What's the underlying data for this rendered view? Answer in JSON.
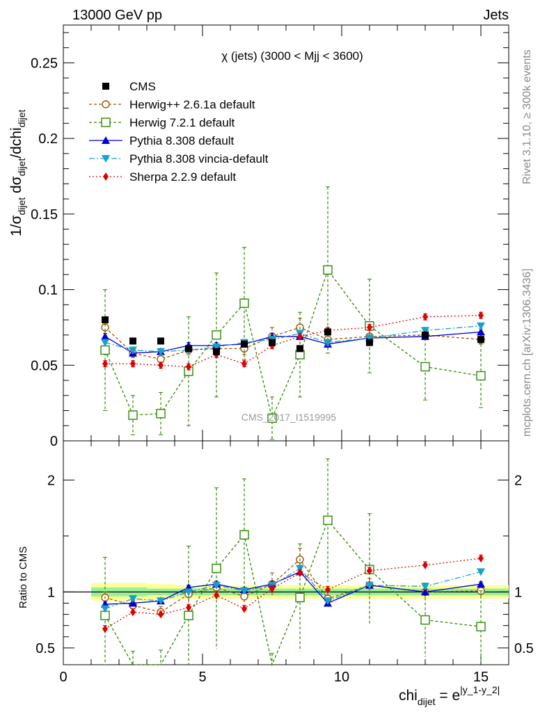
{
  "chart_data": {
    "type": "line",
    "header_left": "13000 GeV pp",
    "header_right": "Jets",
    "title": "χ (jets) (3000 < Mjj < 3600)",
    "watermark": "CMS_2017_I1519995",
    "side_label_top": "Rivet 3.1.10, ≥ 300k events",
    "side_label_bottom": "mcplots.cern.ch [arXiv:1306.3436]",
    "ylabel_top": "1/σ_dijet dσ_dijet/dchi_dijet",
    "ylabel_ratio": "Ratio to CMS",
    "xlabel": "chi_dijet = e^|y_1-y_2|",
    "xlim": [
      0,
      16
    ],
    "ylim_top": [
      0,
      0.275
    ],
    "ylim_ratio": [
      0.35,
      2.35
    ],
    "xticks": [
      0,
      5,
      10,
      15
    ],
    "yticks_top": [
      0,
      0.05,
      0.1,
      0.15,
      0.2,
      0.25
    ],
    "yticks_ratio": [
      0.5,
      1,
      2
    ],
    "x_bins": [
      1.5,
      2.5,
      3.5,
      4.5,
      5.5,
      6.5,
      7.5,
      8.5,
      9.5,
      11.0,
      13.0,
      15.0
    ],
    "bin_edges": [
      1,
      2,
      3,
      4,
      5,
      6,
      7,
      8,
      9,
      10,
      12,
      14,
      16
    ],
    "data": {
      "name": "CMS",
      "values": [
        0.08,
        0.066,
        0.066,
        0.061,
        0.059,
        0.064,
        0.065,
        0.061,
        0.072,
        0.065,
        0.07,
        0.067
      ],
      "band_inner": [
        0.04,
        0.04,
        0.03,
        0.03,
        0.03,
        0.03,
        0.03,
        0.03,
        0.03,
        0.03,
        0.03,
        0.03
      ],
      "band_outer": [
        0.08,
        0.08,
        0.07,
        0.06,
        0.06,
        0.06,
        0.06,
        0.06,
        0.06,
        0.06,
        0.06,
        0.06
      ]
    },
    "series": [
      {
        "name": "Herwig++ 2.6.1a default",
        "color": "#a05000",
        "dash": "4,3",
        "marker": "circle-open",
        "values": [
          0.075,
          0.058,
          0.054,
          0.06,
          0.061,
          0.061,
          0.069,
          0.075,
          0.067,
          0.069,
          0.07,
          0.067
        ],
        "errors": [
          0.004,
          0.003,
          0.003,
          0.003,
          0.003,
          0.004,
          0.006,
          0.006,
          0.004,
          0.004,
          0.003,
          0.003
        ]
      },
      {
        "name": "Herwig 7.2.1 default",
        "color": "#2a8a00",
        "dash": "4,3",
        "marker": "square-open",
        "values": [
          0.06,
          0.017,
          0.018,
          0.046,
          0.07,
          0.091,
          0.015,
          0.057,
          0.113,
          0.076,
          0.049,
          0.043
        ],
        "errors": [
          0.04,
          0.013,
          0.014,
          0.036,
          0.041,
          0.037,
          0.014,
          0.028,
          0.055,
          0.031,
          0.022,
          0.021
        ]
      },
      {
        "name": "Pythia 8.308 default",
        "color": "#0000d0",
        "dash": "",
        "marker": "triangle-up",
        "values": [
          0.069,
          0.058,
          0.059,
          0.063,
          0.063,
          0.064,
          0.069,
          0.069,
          0.064,
          0.068,
          0.069,
          0.072
        ],
        "errors": [
          0.002,
          0.002,
          0.002,
          0.002,
          0.002,
          0.002,
          0.002,
          0.002,
          0.002,
          0.002,
          0.002,
          0.002
        ]
      },
      {
        "name": "Pythia 8.308 vincia-default",
        "color": "#1aa0c8",
        "dash": "8,3,2,3",
        "marker": "triangle-down",
        "values": [
          0.065,
          0.06,
          0.059,
          0.06,
          0.062,
          0.065,
          0.067,
          0.071,
          0.065,
          0.068,
          0.073,
          0.076
        ],
        "errors": [
          0.002,
          0.002,
          0.002,
          0.002,
          0.002,
          0.002,
          0.002,
          0.002,
          0.002,
          0.002,
          0.002,
          0.002
        ]
      },
      {
        "name": "Sherpa 2.2.9 default",
        "color": "#e00000",
        "dash": "2,3",
        "marker": "diamond",
        "values": [
          0.051,
          0.051,
          0.05,
          0.049,
          0.057,
          0.051,
          0.063,
          0.069,
          0.073,
          0.075,
          0.082,
          0.083
        ],
        "errors": [
          0.002,
          0.002,
          0.002,
          0.002,
          0.002,
          0.002,
          0.002,
          0.002,
          0.002,
          0.002,
          0.002,
          0.002
        ]
      }
    ],
    "ratios": {
      "Herwig++ 2.6.1a default": [
        0.95,
        0.88,
        0.82,
        0.98,
        1.04,
        0.96,
        1.07,
        1.29,
        0.94,
        1.06,
        1.0,
        1.01
      ],
      "Herwig 7.2.1 default": [
        0.79,
        0.27,
        0.27,
        0.79,
        1.21,
        1.51,
        0.24,
        0.95,
        1.64,
        1.2,
        0.75,
        0.69
      ],
      "Pythia 8.308 default": [
        0.89,
        0.9,
        0.92,
        1.04,
        1.07,
        1.02,
        1.07,
        1.18,
        0.9,
        1.06,
        1.0,
        1.07
      ],
      "Pythia 8.308 vincia-default": [
        0.85,
        0.94,
        0.92,
        1.0,
        1.06,
        1.01,
        1.06,
        1.21,
        0.92,
        1.06,
        1.05,
        1.18
      ],
      "Sherpa 2.2.9 default": [
        0.67,
        0.82,
        0.8,
        0.86,
        0.97,
        0.85,
        1.03,
        1.17,
        1.02,
        1.19,
        1.24,
        1.3
      ]
    },
    "ratio_errors": {
      "Herwig++ 2.6.1a default": [
        0.05,
        0.05,
        0.05,
        0.05,
        0.06,
        0.06,
        0.1,
        0.1,
        0.06,
        0.06,
        0.05,
        0.05
      ],
      "Herwig 7.2.1 default": [
        0.52,
        0.2,
        0.21,
        0.62,
        0.72,
        0.5,
        0.21,
        0.48,
        0.55,
        0.5,
        0.33,
        0.32
      ],
      "Pythia 8.308 default": [
        0.02,
        0.02,
        0.02,
        0.02,
        0.02,
        0.02,
        0.02,
        0.02,
        0.02,
        0.02,
        0.02,
        0.02
      ],
      "Pythia 8.308 vincia-default": [
        0.02,
        0.02,
        0.02,
        0.02,
        0.02,
        0.02,
        0.02,
        0.02,
        0.02,
        0.02,
        0.02,
        0.02
      ],
      "Sherpa 2.2.9 default": [
        0.03,
        0.03,
        0.03,
        0.03,
        0.03,
        0.03,
        0.03,
        0.03,
        0.03,
        0.03,
        0.03,
        0.03
      ]
    }
  }
}
